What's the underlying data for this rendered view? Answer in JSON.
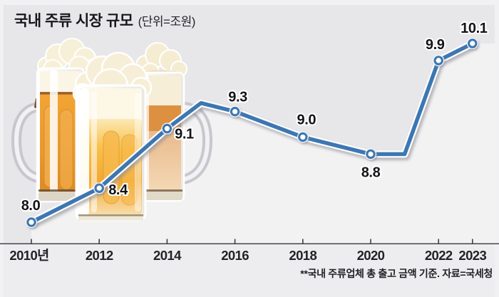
{
  "title": {
    "main": "국내 주류 시장 규모",
    "unit": "(단위=조원)"
  },
  "source_note": "**국내 주류업체 총 출고 금액 기준. 자료=국세청",
  "colors": {
    "line_blue": "#3d77b2",
    "background": "#e7e7ea",
    "area_under_line": "#f2f2f3",
    "axis": "#45454b",
    "label_text": "#141418"
  },
  "illustration": {
    "description": "three overlapping beer mugs with foam"
  },
  "chart_data": {
    "type": "line",
    "title": "국내 주류 시장 규모",
    "unit": "조원",
    "grid": false,
    "legend": "none",
    "x_range": [
      2010,
      2023
    ],
    "ylim": [
      7.8,
      10.5
    ],
    "source": "국세청",
    "points": [
      {
        "year": 2010,
        "value": 8.0,
        "label": "8.0",
        "tick": "2010년"
      },
      {
        "year": 2012,
        "value": 8.4,
        "label": "8.4",
        "tick": "2012"
      },
      {
        "year": 2014,
        "value": 9.1,
        "label": "9.1",
        "tick": "2014"
      },
      {
        "year": 2015,
        "value": 9.4,
        "label": null,
        "tick": null,
        "estimated": true
      },
      {
        "year": 2016,
        "value": 9.3,
        "label": "9.3",
        "tick": "2016"
      },
      {
        "year": 2018,
        "value": 9.0,
        "label": "9.0",
        "tick": "2018"
      },
      {
        "year": 2020,
        "value": 8.8,
        "label": "8.8",
        "tick": "2020"
      },
      {
        "year": 2021,
        "value": 8.8,
        "label": null,
        "tick": null,
        "estimated": true
      },
      {
        "year": 2022,
        "value": 9.9,
        "label": "9.9",
        "tick": "2022"
      },
      {
        "year": 2023,
        "value": 10.1,
        "label": "10.1",
        "tick": "2023"
      }
    ]
  }
}
